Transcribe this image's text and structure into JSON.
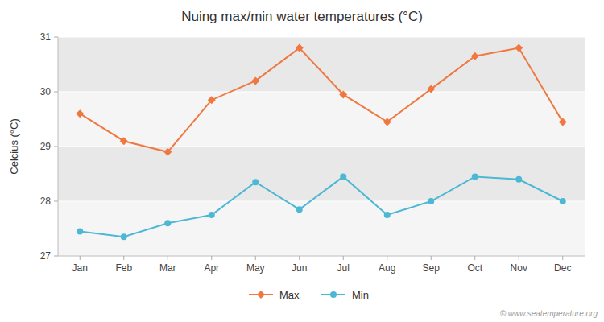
{
  "chart_data": {
    "type": "line",
    "title": "Nuing max/min water temperatures (°C)",
    "y_label": "Celcius (°C)",
    "categories": [
      "Jan",
      "Feb",
      "Mar",
      "Apr",
      "May",
      "Jun",
      "Jul",
      "Aug",
      "Sep",
      "Oct",
      "Nov",
      "Dec"
    ],
    "series": [
      {
        "name": "Max",
        "color": "#f07840",
        "marker": "diamond",
        "values": [
          29.6,
          29.1,
          28.9,
          29.85,
          30.2,
          30.8,
          29.95,
          29.45,
          30.05,
          30.65,
          30.8,
          29.45
        ]
      },
      {
        "name": "Min",
        "color": "#4db8d4",
        "marker": "circle",
        "values": [
          27.45,
          27.35,
          27.6,
          27.75,
          28.35,
          27.85,
          28.45,
          27.75,
          28.0,
          28.45,
          28.4,
          28.0
        ]
      }
    ],
    "ylim": [
      27,
      31
    ],
    "yticks": [
      27,
      28,
      29,
      30,
      31
    ],
    "grid": true,
    "legend": "bottom",
    "annotations": [
      "© www.seatemperature.org"
    ]
  }
}
